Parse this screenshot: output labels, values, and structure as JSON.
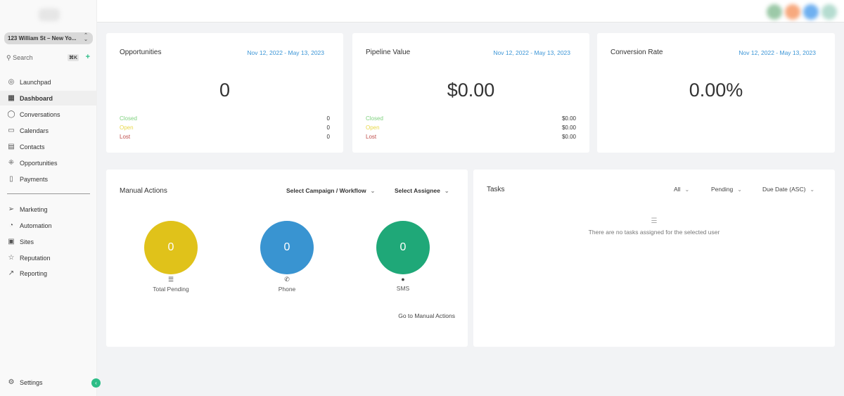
{
  "sidebar": {
    "location": "123 William St – New Yo...",
    "search_placeholder": "Search",
    "shortcut": "⌘K",
    "items": [
      {
        "label": "Launchpad",
        "icon": "rocket-icon"
      },
      {
        "label": "Dashboard",
        "icon": "grid-icon"
      },
      {
        "label": "Conversations",
        "icon": "chat-icon"
      },
      {
        "label": "Calendars",
        "icon": "calendar-icon"
      },
      {
        "label": "Contacts",
        "icon": "contacts-icon"
      },
      {
        "label": "Opportunities",
        "icon": "opportunities-icon"
      },
      {
        "label": "Payments",
        "icon": "payments-icon"
      }
    ],
    "items2": [
      {
        "label": "Marketing",
        "icon": "send-icon"
      },
      {
        "label": "Automation",
        "icon": "automation-icon"
      },
      {
        "label": "Sites",
        "icon": "sites-icon"
      },
      {
        "label": "Reputation",
        "icon": "star-icon"
      },
      {
        "label": "Reporting",
        "icon": "chart-icon"
      }
    ],
    "settings": "Settings",
    "active": "Dashboard"
  },
  "stats": [
    {
      "title": "Opportunities",
      "date": "Nov 12, 2022 - May 13, 2023",
      "value": "0",
      "rows": [
        {
          "label": "Closed",
          "value": "0"
        },
        {
          "label": "Open",
          "value": "0"
        },
        {
          "label": "Lost",
          "value": "0"
        }
      ]
    },
    {
      "title": "Pipeline Value",
      "date": "Nov 12, 2022 - May 13, 2023",
      "value": "$0.00",
      "rows": [
        {
          "label": "Closed",
          "value": "$0.00"
        },
        {
          "label": "Open",
          "value": "$0.00"
        },
        {
          "label": "Lost",
          "value": "$0.00"
        }
      ]
    },
    {
      "title": "Conversion Rate",
      "date": "Nov 12, 2022 - May 13, 2023",
      "value": "0.00%"
    }
  ],
  "status_colors": {
    "closed": "#7fd17f",
    "open": "#e8d84a",
    "lost": "#c0504d"
  },
  "manual_actions": {
    "title": "Manual Actions",
    "campaign_select": "Select Campaign / Workflow",
    "assignee_select": "Select Assignee",
    "circles": [
      {
        "label": "Total Pending",
        "value": "0",
        "color": "#e0c21a",
        "icon": "list-icon"
      },
      {
        "label": "Phone",
        "value": "0",
        "color": "#3994d1",
        "icon": "phone-icon"
      },
      {
        "label": "SMS",
        "value": "0",
        "color": "#1fa878",
        "icon": "sms-icon"
      }
    ],
    "link": "Go to Manual Actions"
  },
  "tasks": {
    "title": "Tasks",
    "filter_user": "All",
    "filter_status": "Pending",
    "sort": "Due Date (ASC)",
    "empty": "There are no tasks assigned for the selected user"
  }
}
